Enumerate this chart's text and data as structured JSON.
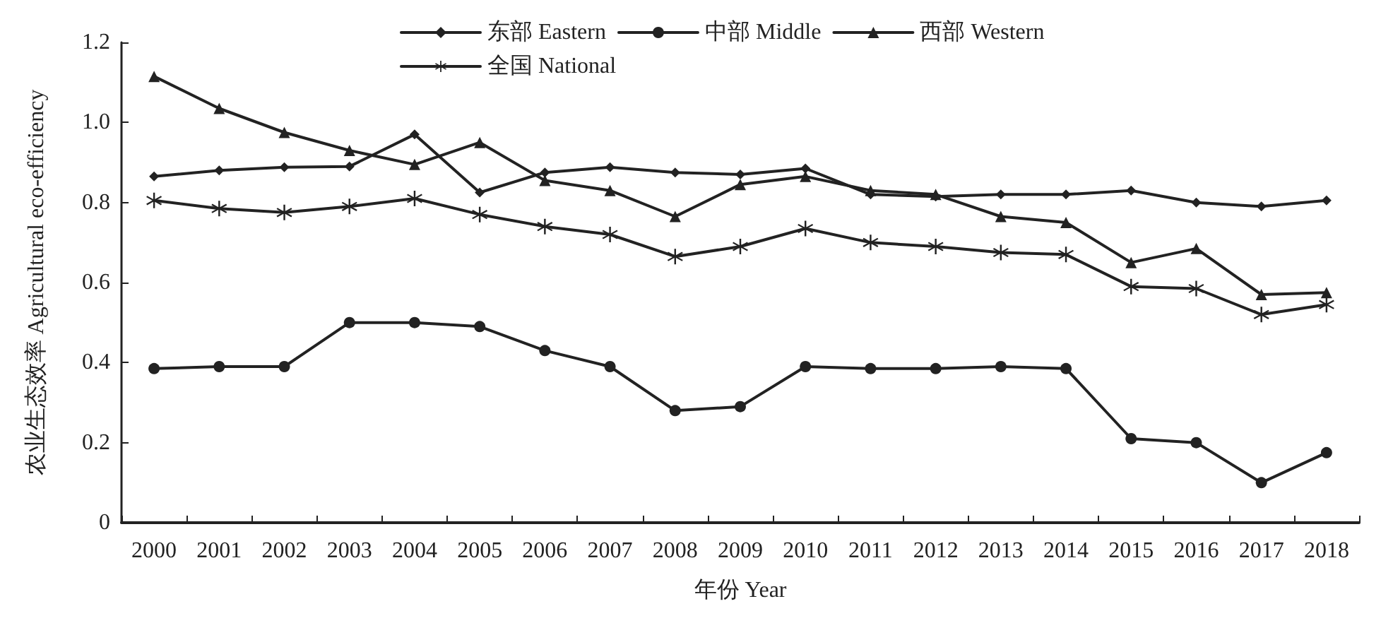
{
  "chart_data": {
    "type": "line",
    "xlabel": "年份 Year",
    "ylabel": "农业生态效率 Agricultural eco-efficiency",
    "categories": [
      "2000",
      "2001",
      "2002",
      "2003",
      "2004",
      "2005",
      "2006",
      "2007",
      "2008",
      "2009",
      "2010",
      "2011",
      "2012",
      "2013",
      "2014",
      "2015",
      "2016",
      "2017",
      "2018"
    ],
    "series": [
      {
        "name": "东部 Eastern",
        "color": "#222222",
        "marker": "diamond",
        "values": [
          0.865,
          0.88,
          0.888,
          0.89,
          0.97,
          0.825,
          0.875,
          0.888,
          0.875,
          0.87,
          0.885,
          0.82,
          0.815,
          0.82,
          0.82,
          0.83,
          0.8,
          0.79,
          0.805
        ]
      },
      {
        "name": "中部 Middle",
        "color": "#222222",
        "marker": "circle",
        "values": [
          0.385,
          0.39,
          0.39,
          0.5,
          0.5,
          0.49,
          0.43,
          0.39,
          0.28,
          0.29,
          0.39,
          0.385,
          0.385,
          0.39,
          0.385,
          0.21,
          0.2,
          0.1,
          0.175
        ]
      },
      {
        "name": "西部 Western",
        "color": "#222222",
        "marker": "triangle",
        "values": [
          1.115,
          1.035,
          0.975,
          0.93,
          0.895,
          0.95,
          0.855,
          0.83,
          0.765,
          0.845,
          0.865,
          0.83,
          0.82,
          0.765,
          0.75,
          0.65,
          0.685,
          0.57,
          0.575
        ]
      },
      {
        "name": "全国 National",
        "color": "#222222",
        "marker": "cross",
        "values": [
          0.805,
          0.785,
          0.775,
          0.79,
          0.81,
          0.77,
          0.74,
          0.72,
          0.665,
          0.69,
          0.735,
          0.7,
          0.69,
          0.675,
          0.67,
          0.59,
          0.585,
          0.52,
          0.545
        ]
      }
    ],
    "ylim": [
      0,
      1.2
    ],
    "yticks": [
      0,
      0.2,
      0.4,
      0.6,
      0.8,
      {
        "value": 1,
        "label": "1.0"
      },
      1.2
    ],
    "grid": false,
    "legend": "top",
    "line_style": "solid"
  }
}
